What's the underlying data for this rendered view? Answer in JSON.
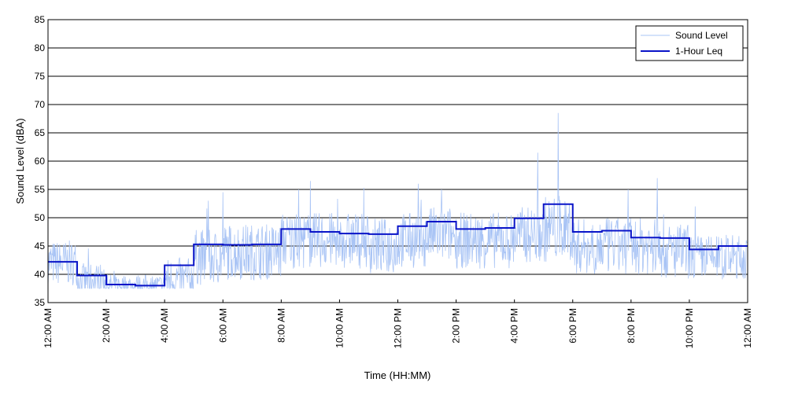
{
  "chart_data": {
    "type": "line",
    "xlabel": "Time (HH:MM)",
    "ylabel": "Sound Level (dBA)",
    "ylim": [
      35,
      85
    ],
    "yticks": [
      35,
      40,
      45,
      50,
      55,
      60,
      65,
      70,
      75,
      80,
      85
    ],
    "xlim": [
      0,
      24
    ],
    "xtick_hours": [
      0,
      2,
      4,
      6,
      8,
      10,
      12,
      14,
      16,
      18,
      20,
      22,
      24
    ],
    "xtick_labels": [
      "12:00 AM",
      "2:00 AM",
      "4:00 AM",
      "6:00 AM",
      "8:00 AM",
      "10:00 AM",
      "12:00 PM",
      "2:00 PM",
      "4:00 PM",
      "6:00 PM",
      "8:00 PM",
      "10:00 PM",
      "12:00 AM"
    ],
    "grid": "horizontal",
    "legend_position": "top-right",
    "series": [
      {
        "name": "Sound Level",
        "color": "#a9c4f5",
        "style": "thin-noisy",
        "hourly_base": [
          42,
          39,
          38,
          38,
          39,
          43,
          44,
          44,
          46,
          46,
          46,
          45,
          46,
          47,
          46,
          46,
          47,
          48,
          45,
          45,
          45,
          44,
          43,
          43
        ],
        "hourly_range": [
          4,
          3,
          2,
          2,
          4,
          5,
          5,
          5,
          5,
          5,
          5,
          5,
          5,
          5,
          5,
          5,
          5,
          6,
          5,
          5,
          5,
          5,
          4,
          4
        ],
        "peaks": [
          {
            "x": 5.5,
            "y": 53
          },
          {
            "x": 6.0,
            "y": 54.5
          },
          {
            "x": 8.6,
            "y": 55
          },
          {
            "x": 9.0,
            "y": 56.5
          },
          {
            "x": 12.7,
            "y": 56
          },
          {
            "x": 13.5,
            "y": 55
          },
          {
            "x": 16.8,
            "y": 61.5
          },
          {
            "x": 17.5,
            "y": 68.5
          },
          {
            "x": 19.9,
            "y": 55
          },
          {
            "x": 20.9,
            "y": 57
          },
          {
            "x": 22.2,
            "y": 52
          }
        ]
      },
      {
        "name": "1-Hour Leq",
        "color": "#0a14c8",
        "style": "step",
        "hours": [
          0,
          1,
          2,
          3,
          4,
          5,
          6,
          7,
          8,
          9,
          10,
          11,
          12,
          13,
          14,
          15,
          16,
          17,
          18,
          19,
          20,
          21,
          22,
          23
        ],
        "values": [
          42.2,
          39.8,
          38.2,
          38.0,
          41.6,
          45.3,
          45.2,
          45.3,
          48.0,
          47.5,
          47.2,
          47.1,
          48.5,
          49.3,
          48.0,
          48.2,
          49.9,
          52.4,
          47.5,
          47.7,
          46.5,
          46.4,
          44.4,
          45.0
        ]
      }
    ]
  }
}
